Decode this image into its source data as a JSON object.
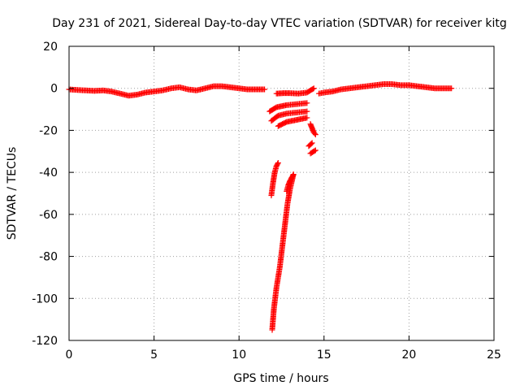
{
  "chart_data": {
    "type": "scatter",
    "title": "Day 231 of 2021, Sidereal Day-to-day VTEC variation (SDTVAR) for receiver kitg",
    "xlabel": "GPS time / hours",
    "ylabel": "SDTVAR / TECUs",
    "xlim": [
      0,
      25
    ],
    "ylim": [
      -120,
      20
    ],
    "xticks": [
      0,
      5,
      10,
      15,
      20,
      25
    ],
    "yticks": [
      -120,
      -100,
      -80,
      -60,
      -40,
      -20,
      0,
      20
    ],
    "grid": true,
    "marker": "+",
    "color": "#ff0000",
    "series": [
      {
        "segments": [
          [
            [
              0.0,
              -0.5
            ],
            [
              0.5,
              -0.8
            ],
            [
              1.0,
              -1.0
            ],
            [
              1.5,
              -1.2
            ],
            [
              2.0,
              -1.0
            ],
            [
              2.5,
              -1.5
            ],
            [
              3.0,
              -2.5
            ],
            [
              3.5,
              -3.5
            ],
            [
              4.0,
              -3.0
            ],
            [
              4.5,
              -2.0
            ],
            [
              5.0,
              -1.5
            ],
            [
              5.5,
              -1.0
            ],
            [
              6.0,
              0.0
            ],
            [
              6.5,
              0.5
            ],
            [
              7.0,
              -0.5
            ],
            [
              7.5,
              -1.0
            ],
            [
              8.0,
              0.0
            ],
            [
              8.5,
              1.0
            ],
            [
              9.0,
              1.0
            ],
            [
              9.5,
              0.5
            ],
            [
              10.0,
              0.0
            ],
            [
              10.5,
              -0.5
            ],
            [
              11.0,
              -0.5
            ],
            [
              11.5,
              -0.5
            ]
          ],
          [
            [
              12.2,
              -2.5
            ],
            [
              12.6,
              -2.3
            ],
            [
              13.0,
              -2.3
            ],
            [
              13.5,
              -2.5
            ],
            [
              14.0,
              -2.0
            ],
            [
              14.4,
              0.0
            ]
          ],
          [
            [
              14.7,
              -2.5
            ],
            [
              15.0,
              -2.0
            ],
            [
              15.5,
              -1.5
            ],
            [
              16.0,
              -0.5
            ],
            [
              16.5,
              0.0
            ],
            [
              17.0,
              0.5
            ],
            [
              17.5,
              1.0
            ],
            [
              18.0,
              1.5
            ],
            [
              18.5,
              2.0
            ],
            [
              19.0,
              2.0
            ],
            [
              19.5,
              1.5
            ],
            [
              20.0,
              1.5
            ],
            [
              20.5,
              1.0
            ],
            [
              21.0,
              0.5
            ],
            [
              21.5,
              0.0
            ],
            [
              22.0,
              0.0
            ],
            [
              22.5,
              0.0
            ]
          ],
          [
            [
              11.8,
              -11.0
            ],
            [
              12.2,
              -9.0
            ],
            [
              12.8,
              -8.0
            ],
            [
              13.4,
              -7.5
            ],
            [
              14.0,
              -7.0
            ]
          ],
          [
            [
              11.9,
              -15.5
            ],
            [
              12.3,
              -13.0
            ],
            [
              12.8,
              -12.0
            ],
            [
              13.4,
              -11.5
            ],
            [
              14.0,
              -11.0
            ]
          ],
          [
            [
              12.3,
              -18.0
            ],
            [
              12.8,
              -16.0
            ],
            [
              13.4,
              -15.0
            ],
            [
              14.0,
              -14.0
            ]
          ],
          [
            [
              14.2,
              -17.0
            ],
            [
              14.3,
              -19.0
            ],
            [
              14.4,
              -21.0
            ],
            [
              14.5,
              -22.0
            ]
          ],
          [
            [
              14.1,
              -27.5
            ],
            [
              14.3,
              -26.0
            ]
          ],
          [
            [
              14.2,
              -31.0
            ],
            [
              14.5,
              -29.5
            ]
          ],
          [
            [
              11.9,
              -51.0
            ],
            [
              12.0,
              -45.0
            ],
            [
              12.1,
              -40.0
            ],
            [
              12.2,
              -37.0
            ],
            [
              12.3,
              -35.5
            ]
          ],
          [
            [
              12.8,
              -49.0
            ],
            [
              12.9,
              -46.0
            ],
            [
              13.0,
              -44.0
            ],
            [
              13.2,
              -41.0
            ]
          ],
          [
            [
              11.95,
              -115.0
            ],
            [
              12.05,
              -105.0
            ],
            [
              12.2,
              -95.0
            ],
            [
              12.4,
              -85.0
            ],
            [
              12.55,
              -75.0
            ],
            [
              12.7,
              -65.0
            ],
            [
              12.85,
              -55.0
            ],
            [
              13.0,
              -48.0
            ],
            [
              13.2,
              -41.0
            ]
          ]
        ]
      }
    ]
  }
}
